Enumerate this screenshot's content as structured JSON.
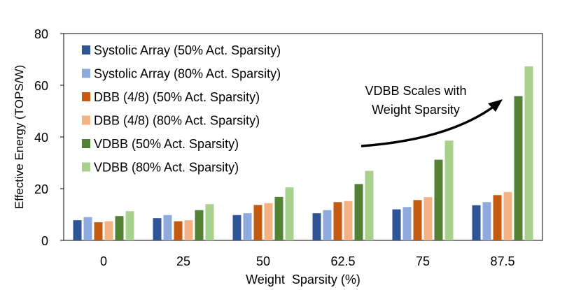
{
  "chart_data": {
    "type": "bar",
    "title": "",
    "xlabel": "Weight  Sparsity (%)",
    "ylabel": "Effective Energy (TOPS/W)",
    "ylim": [
      0,
      80
    ],
    "yticks": [
      0,
      20,
      40,
      60,
      80
    ],
    "grid": false,
    "legend_position": "top-left",
    "categories": [
      "0",
      "25",
      "50",
      "62.5",
      "75",
      "87.5"
    ],
    "series": [
      {
        "name": "Systolic Array (50% Act. Sparsity)",
        "color": "#2F5597",
        "values": [
          7.8,
          8.6,
          9.8,
          10.5,
          12.0,
          13.6
        ]
      },
      {
        "name": "Systolic Array (80% Act. Sparsity)",
        "color": "#8FAADC",
        "values": [
          9.0,
          9.8,
          10.5,
          11.7,
          12.9,
          14.8
        ]
      },
      {
        "name": "DBB (4/8) (50% Act. Sparsity)",
        "color": "#C55A11",
        "values": [
          7.0,
          7.4,
          13.7,
          14.8,
          15.6,
          17.5
        ]
      },
      {
        "name": "DBB (4/8) (80% Act. Sparsity)",
        "color": "#F4B183",
        "values": [
          7.4,
          7.8,
          14.4,
          15.2,
          16.7,
          18.7
        ]
      },
      {
        "name": "VDBB (50% Act. Sparsity)",
        "color": "#548235",
        "values": [
          9.4,
          11.7,
          16.8,
          21.8,
          31.2,
          55.8
        ]
      },
      {
        "name": "VDBB (80% Act. Sparsity)",
        "color": "#A9D18E",
        "values": [
          11.3,
          14.0,
          20.5,
          26.9,
          38.6,
          67.3
        ]
      }
    ],
    "annotation": {
      "line1": "VDBB Scales with",
      "line2": "Weight Sparsity"
    }
  }
}
